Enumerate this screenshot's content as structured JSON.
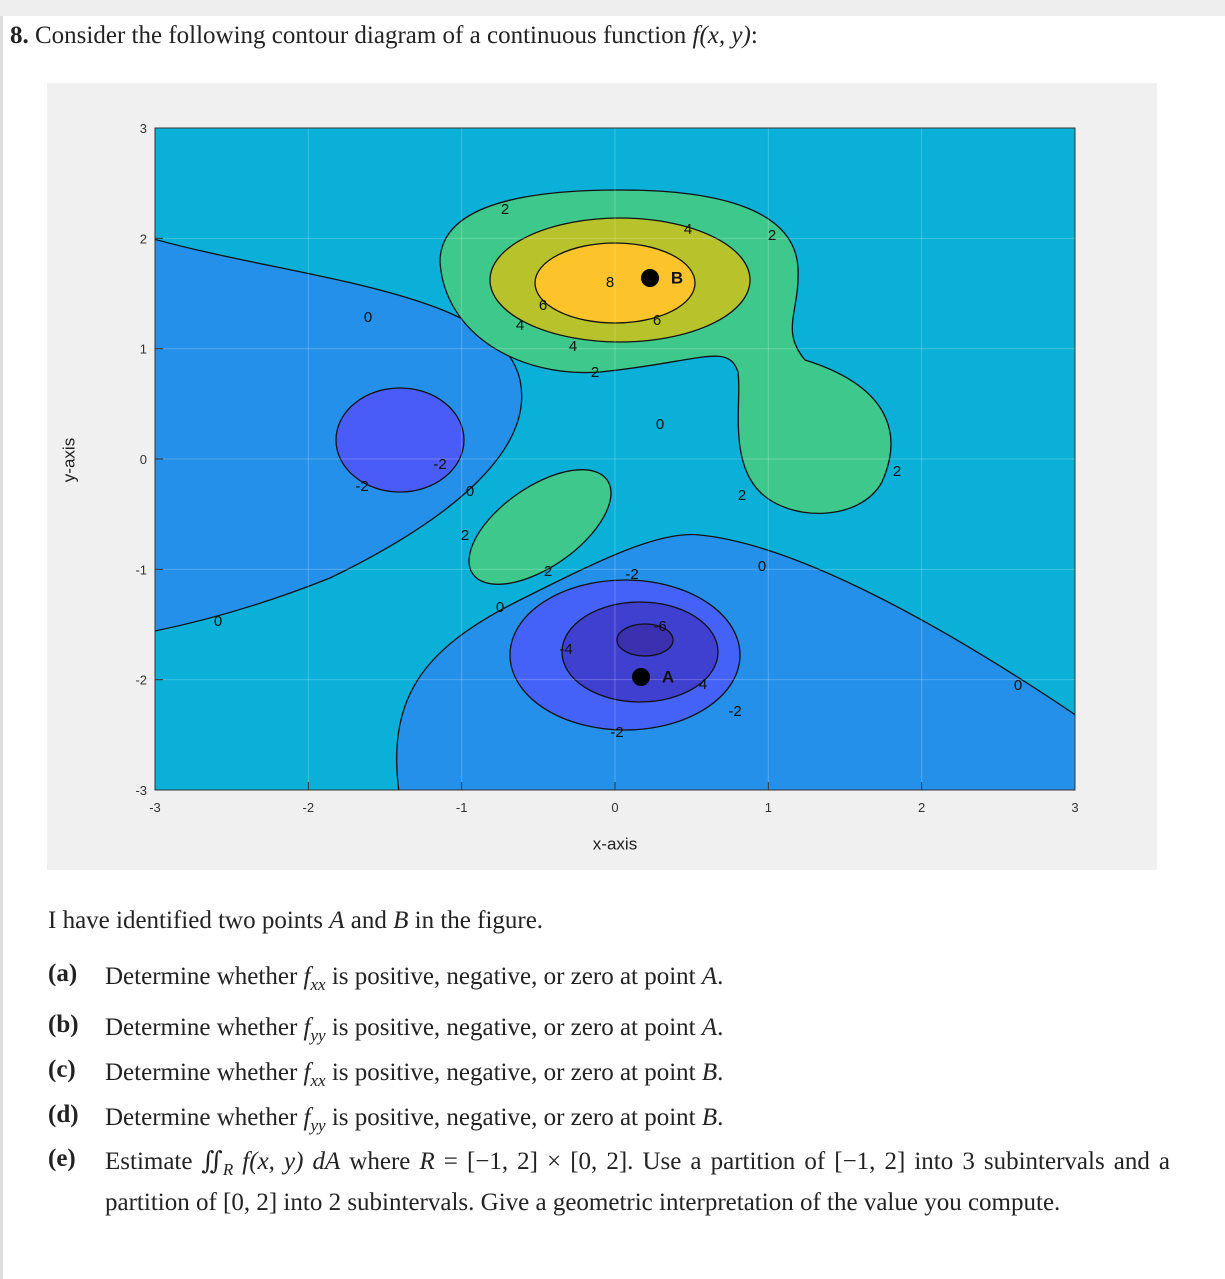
{
  "question": {
    "number": "8.",
    "text": "Consider the following contour diagram of a continuous function ",
    "function": "f(x, y)",
    "end": ":"
  },
  "figure": {
    "x_label": "x-axis",
    "y_label": "y-axis",
    "xticks": [
      -3,
      -2,
      -1,
      0,
      1,
      2,
      3
    ],
    "yticks": [
      -3,
      -2,
      -1,
      0,
      1,
      2,
      3
    ],
    "contour_labels": [
      "0",
      "-2",
      "-2",
      "0",
      "2",
      "0",
      "0",
      "2",
      "-2",
      "-6",
      "-4",
      "4",
      "-2",
      "-2",
      "0",
      "2",
      "2",
      "0",
      "2",
      "4",
      "2",
      "6",
      "4",
      "4",
      "2",
      "6",
      "8",
      "0"
    ],
    "points": [
      "A",
      "B"
    ]
  },
  "intro": [
    "I have identified two points ",
    "A",
    " and ",
    "B",
    " in the figure."
  ],
  "parts": [
    {
      "label": "(a)",
      "text": [
        "Determine whether ",
        "f",
        "xx",
        " is positive, negative, or zero at point ",
        "A",
        "."
      ]
    },
    {
      "label": "(b)",
      "text": [
        "Determine whether ",
        "f",
        "yy",
        " is positive, negative, or zero at point ",
        "A",
        "."
      ]
    },
    {
      "label": "(c)",
      "text": [
        "Determine whether ",
        "f",
        "xx",
        " is positive, negative, or zero at point ",
        "B",
        "."
      ]
    },
    {
      "label": "(d)",
      "text": [
        "Determine whether ",
        "f",
        "yy",
        " is positive, negative, or zero at point ",
        "B",
        "."
      ]
    },
    {
      "label": "(e)",
      "text": [
        "Estimate ",
        "∬",
        "R",
        " f(x, y) dA",
        " where ",
        "R",
        " = [−1, 2] × [0, 2].  Use a partition of [−1, 2] into 3 subintervals and a partition of [0, 2] into 2 subintervals. Give a geometric interpretation of the value you compute."
      ]
    }
  ]
}
